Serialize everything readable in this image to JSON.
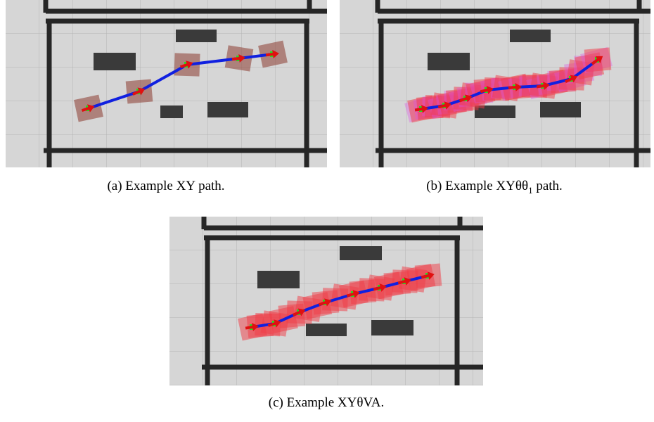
{
  "figures": [
    {
      "label": "(a)",
      "caption": "Example XY path."
    },
    {
      "label": "(b)",
      "caption": "Example XYθθ",
      "subscript": "1",
      "caption_end": "path."
    },
    {
      "label": "(c)",
      "caption": "Example XYθVA."
    }
  ]
}
